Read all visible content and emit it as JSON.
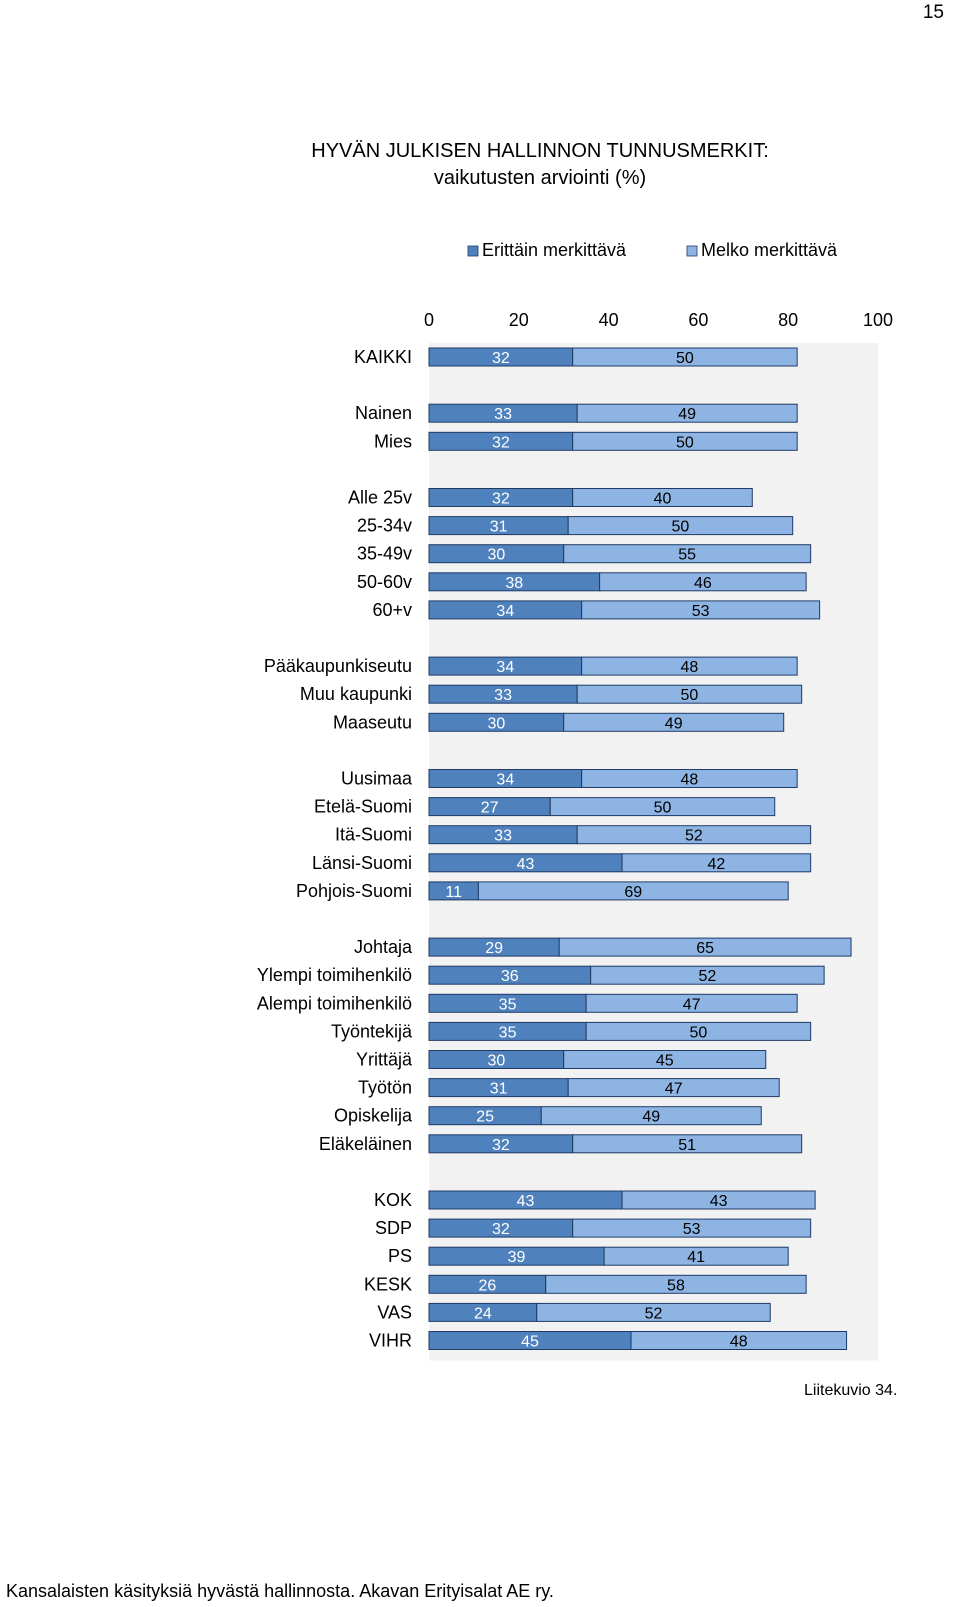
{
  "page_number": "15",
  "caption": "Liitekuvio 34.",
  "footer": "Kansalaisten käsityksiä hyvästä hallinnosta. Akavan Erityisalat AE ry.",
  "colors": {
    "series1": "#4f81bd",
    "series2": "#8eb4e3",
    "plot_background": "#f2f2f2",
    "bar_border": "#1f3b66"
  },
  "chart_data": {
    "type": "bar",
    "orientation": "horizontal",
    "stacked": true,
    "title": "HYVÄN JULKISEN HALLINNON TUNNUSMERKIT:",
    "subtitle": "vaikutusten arviointi (%)",
    "xlim": [
      0,
      100
    ],
    "x_ticks": [
      "0",
      "20",
      "40",
      "60",
      "80",
      "100"
    ],
    "legend_position": "top",
    "series": [
      {
        "name": "Erittäin merkittävä"
      },
      {
        "name": "Melko merkittävä"
      }
    ],
    "groups": [
      {
        "rows": [
          {
            "label": "KAIKKI",
            "values": [
              32,
              50
            ]
          }
        ]
      },
      {
        "rows": [
          {
            "label": "Nainen",
            "values": [
              33,
              49
            ]
          },
          {
            "label": "Mies",
            "values": [
              32,
              50
            ]
          }
        ]
      },
      {
        "rows": [
          {
            "label": "Alle 25v",
            "values": [
              32,
              40
            ]
          },
          {
            "label": "25-34v",
            "values": [
              31,
              50
            ]
          },
          {
            "label": "35-49v",
            "values": [
              30,
              55
            ]
          },
          {
            "label": "50-60v",
            "values": [
              38,
              46
            ]
          },
          {
            "label": "60+v",
            "values": [
              34,
              53
            ]
          }
        ]
      },
      {
        "rows": [
          {
            "label": "Pääkaupunkiseutu",
            "values": [
              34,
              48
            ]
          },
          {
            "label": "Muu kaupunki",
            "values": [
              33,
              50
            ]
          },
          {
            "label": "Maaseutu",
            "values": [
              30,
              49
            ]
          }
        ]
      },
      {
        "rows": [
          {
            "label": "Uusimaa",
            "values": [
              34,
              48
            ]
          },
          {
            "label": "Etelä-Suomi",
            "values": [
              27,
              50
            ]
          },
          {
            "label": "Itä-Suomi",
            "values": [
              33,
              52
            ]
          },
          {
            "label": "Länsi-Suomi",
            "values": [
              43,
              42
            ]
          },
          {
            "label": "Pohjois-Suomi",
            "values": [
              11,
              69
            ]
          }
        ]
      },
      {
        "rows": [
          {
            "label": "Johtaja",
            "values": [
              29,
              65
            ]
          },
          {
            "label": "Ylempi toimihenkilö",
            "values": [
              36,
              52
            ]
          },
          {
            "label": "Alempi toimihenkilö",
            "values": [
              35,
              47
            ]
          },
          {
            "label": "Työntekijä",
            "values": [
              35,
              50
            ]
          },
          {
            "label": "Yrittäjä",
            "values": [
              30,
              45
            ]
          },
          {
            "label": "Työtön",
            "values": [
              31,
              47
            ]
          },
          {
            "label": "Opiskelija",
            "values": [
              25,
              49
            ]
          },
          {
            "label": "Eläkeläinen",
            "values": [
              32,
              51
            ]
          }
        ]
      },
      {
        "rows": [
          {
            "label": "KOK",
            "values": [
              43,
              43
            ]
          },
          {
            "label": "SDP",
            "values": [
              32,
              53
            ]
          },
          {
            "label": "PS",
            "values": [
              39,
              41
            ]
          },
          {
            "label": "KESK",
            "values": [
              26,
              58
            ]
          },
          {
            "label": "VAS",
            "values": [
              24,
              52
            ]
          },
          {
            "label": "VIHR",
            "values": [
              45,
              48
            ]
          }
        ]
      }
    ]
  }
}
